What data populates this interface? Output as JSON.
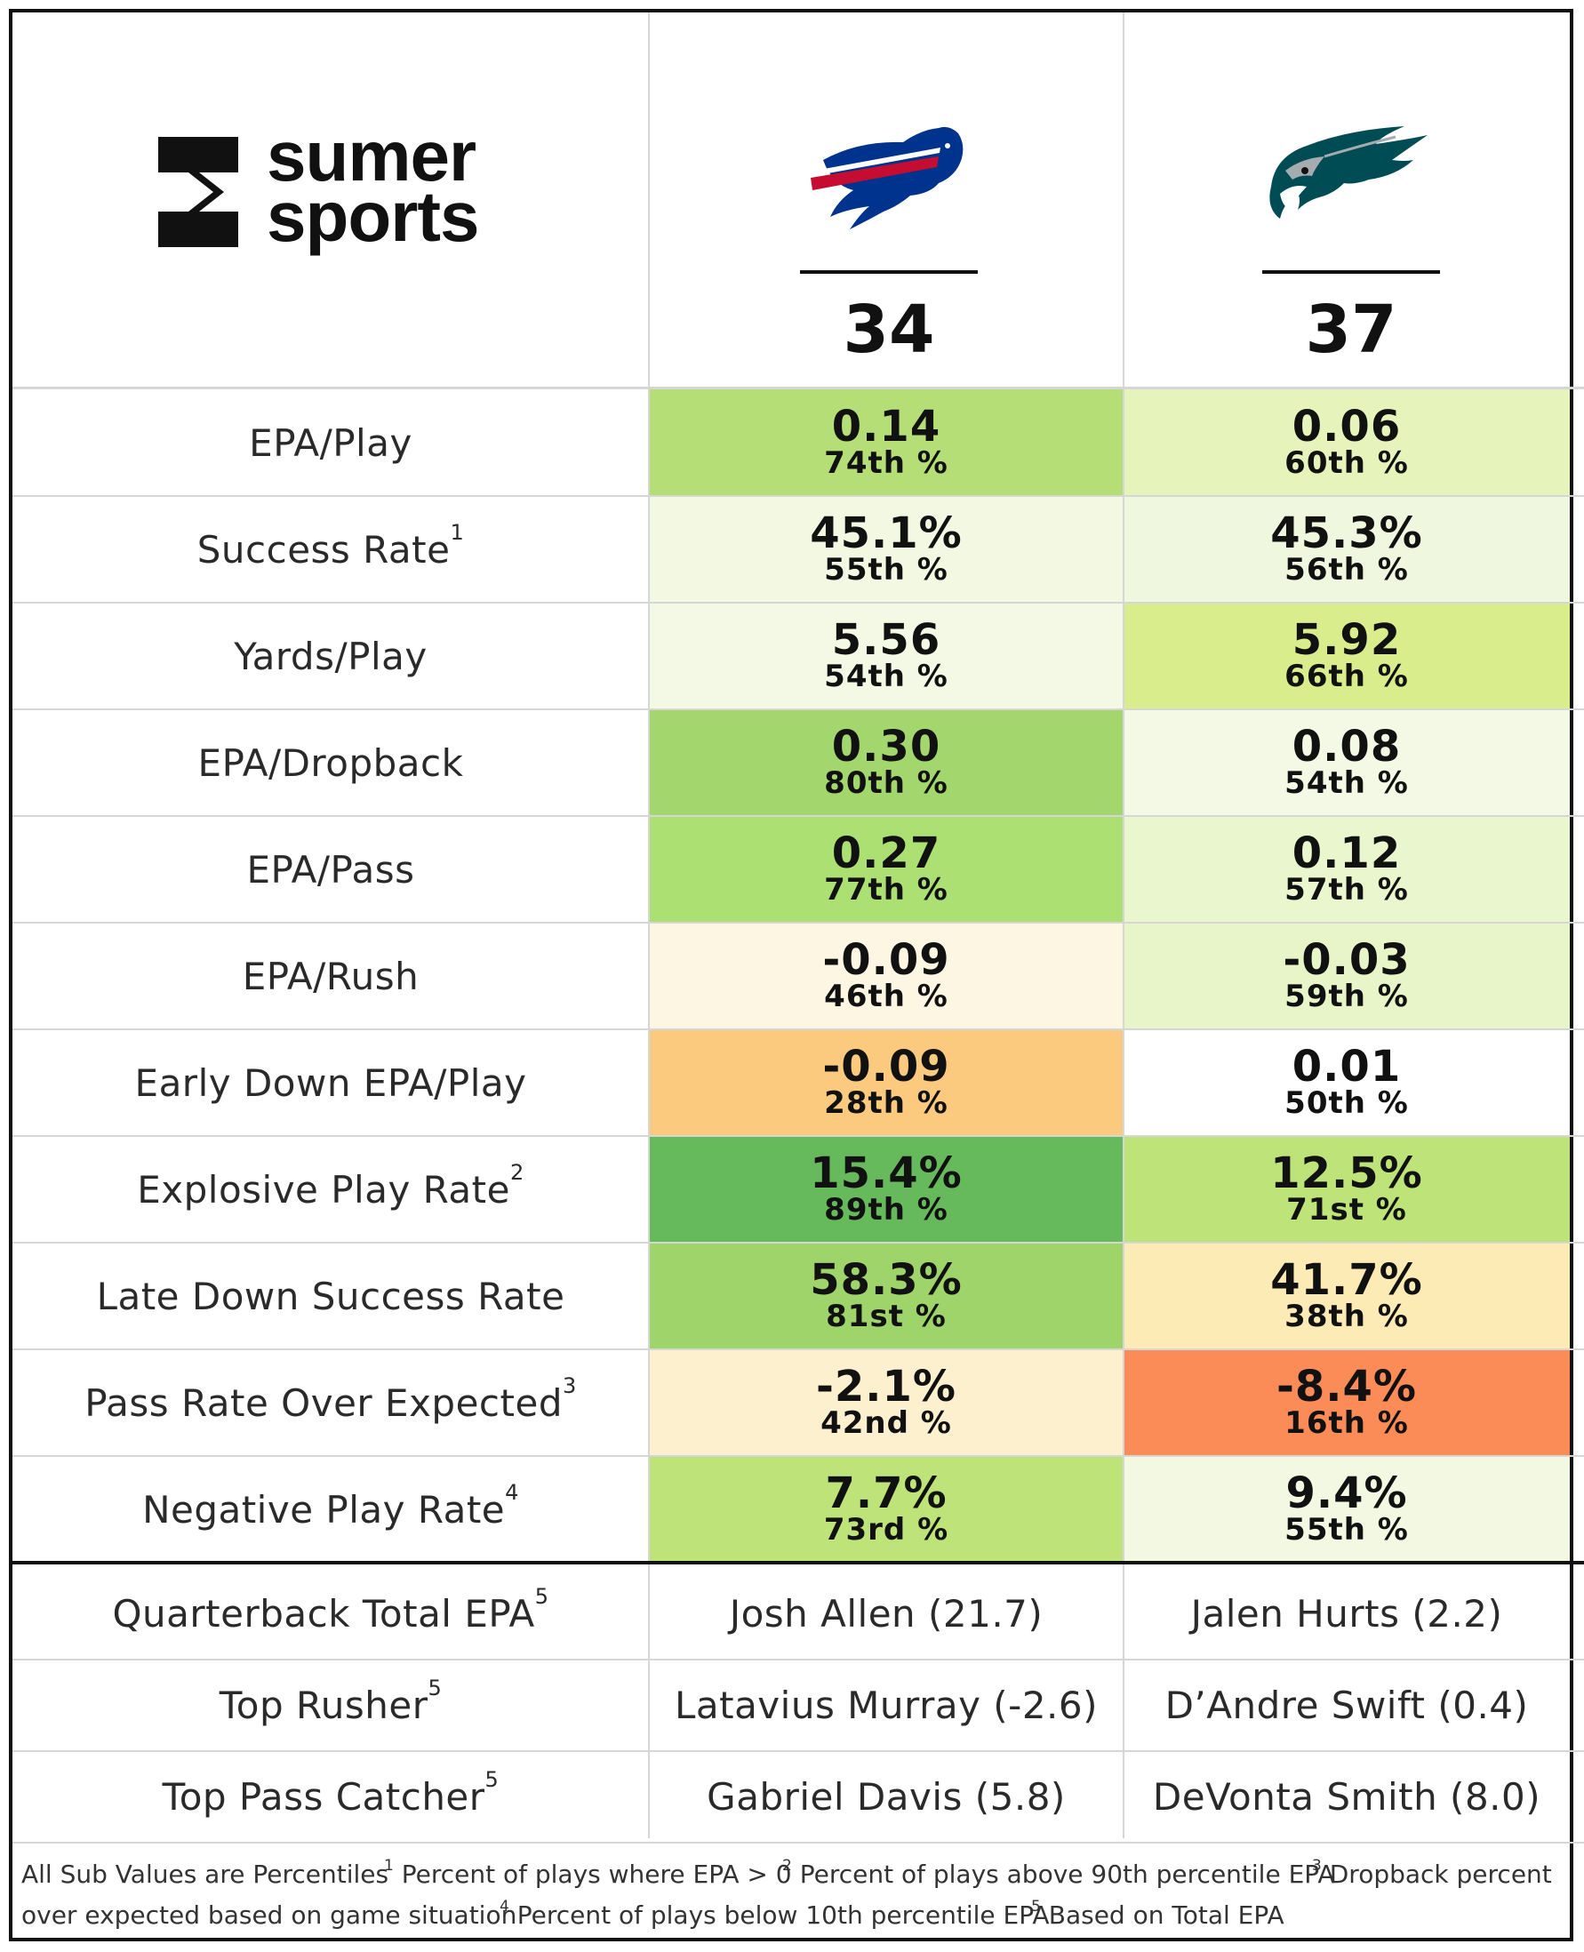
{
  "brand": {
    "line1": "sumer",
    "line2": "sports"
  },
  "teams": [
    {
      "name": "bills-logo",
      "score": "34",
      "primary": "#00338D",
      "accent": "#C60C30"
    },
    {
      "name": "eagles-logo",
      "score": "37",
      "primary": "#004C54",
      "accent": "#A5ACAF"
    }
  ],
  "metrics": [
    {
      "label": "EPA/Play",
      "sup": "",
      "a": {
        "value": "0.14",
        "pct": "74th %",
        "color": "#b5de77"
      },
      "b": {
        "value": "0.06",
        "pct": "60th %",
        "color": "#e6f4bc"
      }
    },
    {
      "label": "Success Rate",
      "sup": "1",
      "a": {
        "value": "45.1%",
        "pct": "55th %",
        "color": "#f2f8e2"
      },
      "b": {
        "value": "45.3%",
        "pct": "56th %",
        "color": "#eff7de"
      }
    },
    {
      "label": "Yards/Play",
      "sup": "",
      "a": {
        "value": "5.56",
        "pct": "54th %",
        "color": "#f3f9e4"
      },
      "b": {
        "value": "5.92",
        "pct": "66th %",
        "color": "#daed8c"
      }
    },
    {
      "label": "EPA/Dropback",
      "sup": "",
      "a": {
        "value": "0.30",
        "pct": "80th %",
        "color": "#a3d66c"
      },
      "b": {
        "value": "0.08",
        "pct": "54th %",
        "color": "#f3f9e4"
      }
    },
    {
      "label": "EPA/Pass",
      "sup": "",
      "a": {
        "value": "0.27",
        "pct": "77th %",
        "color": "#ade073"
      },
      "b": {
        "value": "0.12",
        "pct": "57th %",
        "color": "#eaf6cd"
      }
    },
    {
      "label": "EPA/Rush",
      "sup": "",
      "a": {
        "value": "-0.09",
        "pct": "46th %",
        "color": "#fdf6e2"
      },
      "b": {
        "value": "-0.03",
        "pct": "59th %",
        "color": "#e8f5c8"
      }
    },
    {
      "label": "Early Down EPA/Play",
      "sup": "",
      "a": {
        "value": "-0.09",
        "pct": "28th %",
        "color": "#fbca7f"
      },
      "b": {
        "value": "0.01",
        "pct": "50th %",
        "color": "#ffffff"
      }
    },
    {
      "label": "Explosive Play Rate",
      "sup": "2",
      "a": {
        "value": "15.4%",
        "pct": "89th %",
        "color": "#67ba5c"
      },
      "b": {
        "value": "12.5%",
        "pct": "71st %",
        "color": "#bde379"
      }
    },
    {
      "label": "Late Down Success Rate",
      "sup": "",
      "a": {
        "value": "58.3%",
        "pct": "81st %",
        "color": "#9ed469"
      },
      "b": {
        "value": "41.7%",
        "pct": "38th %",
        "color": "#fdebb6"
      }
    },
    {
      "label": "Pass Rate Over Expected",
      "sup": "3",
      "a": {
        "value": "-2.1%",
        "pct": "42nd %",
        "color": "#fdf0cf"
      },
      "b": {
        "value": "-8.4%",
        "pct": "16th %",
        "color": "#fb8c57"
      }
    },
    {
      "label": "Negative Play Rate",
      "sup": "4",
      "a": {
        "value": "7.7%",
        "pct": "73rd %",
        "color": "#bde379"
      },
      "b": {
        "value": "9.4%",
        "pct": "55th %",
        "color": "#f2f8e2"
      }
    }
  ],
  "players": [
    {
      "label": "Quarterback Total EPA",
      "sup": "5",
      "a": "Josh Allen (21.7)",
      "b": "Jalen Hurts (2.2)"
    },
    {
      "label": "Top Rusher",
      "sup": "5",
      "a": "Latavius Murray (-2.6)",
      "b": "D’Andre Swift (0.4)"
    },
    {
      "label": "Top Pass Catcher",
      "sup": "5",
      "a": "Gabriel Davis (5.8)",
      "b": "DeVonta Smith (8.0)"
    }
  ],
  "footnotes": {
    "intro": "All Sub Values are Percentiles",
    "notes": [
      {
        "num": "1",
        "text": "Percent of plays where EPA > 0"
      },
      {
        "num": "2",
        "text": "Percent of plays above 90th percentile EPA"
      },
      {
        "num": "3",
        "text": "Dropback percent"
      },
      {
        "num": "",
        "text": "over expected based on game situation"
      },
      {
        "num": "4",
        "text": "Percent of plays below 10th percentile EPA"
      },
      {
        "num": "5",
        "text": "Based on Total EPA"
      }
    ]
  }
}
